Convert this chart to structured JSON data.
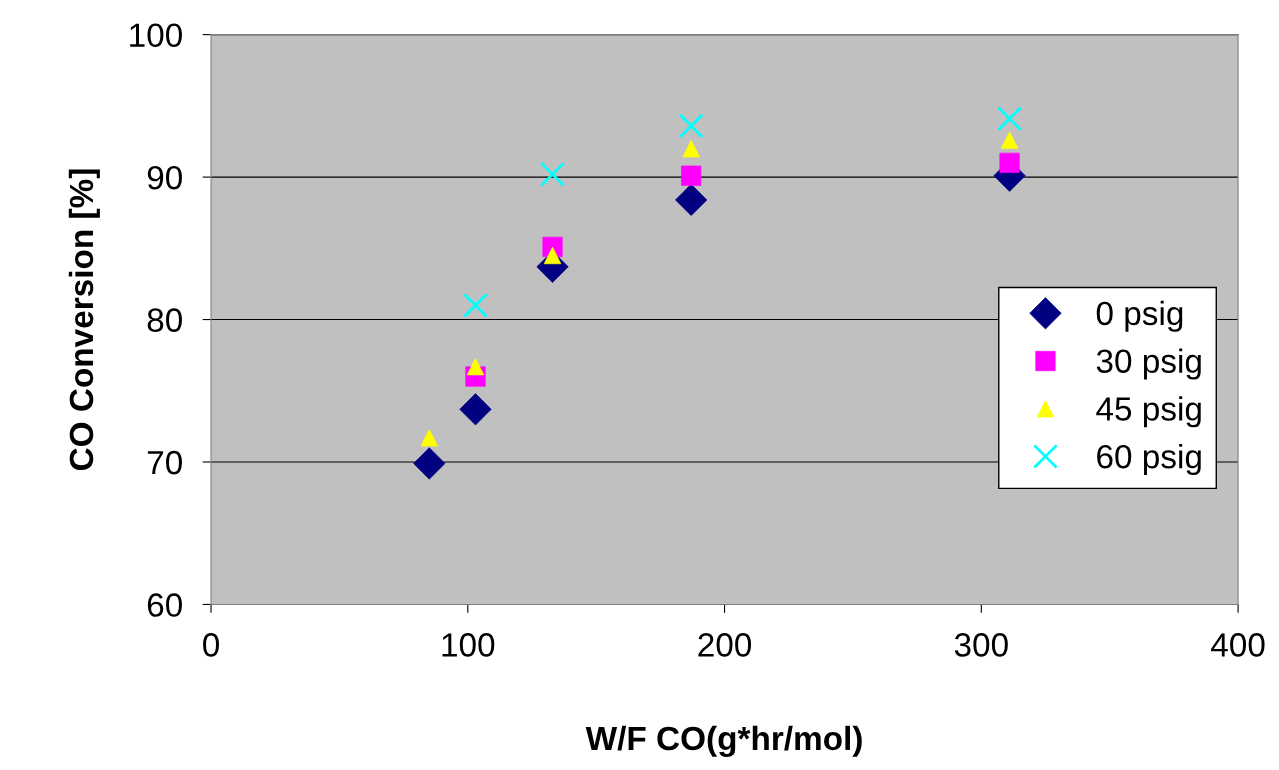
{
  "chart_data": {
    "type": "scatter",
    "xlabel": "W/F CO(g*hr/mol)",
    "ylabel": "CO Conversion [%]",
    "x": [
      85,
      103,
      133,
      187,
      311
    ],
    "series": [
      {
        "name": "0 psig",
        "color": "#000080",
        "marker": "diamond",
        "values": [
          69.9,
          73.7,
          83.7,
          88.4,
          90.1
        ]
      },
      {
        "name": "30 psig",
        "color": "#ff00ff",
        "marker": "square",
        "values": [
          null,
          76.0,
          85.1,
          90.1,
          91.0
        ]
      },
      {
        "name": "45 psig",
        "color": "#ffff00",
        "marker": "triangle",
        "values": [
          71.7,
          76.7,
          84.5,
          92.0,
          92.6
        ]
      },
      {
        "name": "60 psig",
        "color": "#00ffff",
        "marker": "cross",
        "values": [
          null,
          81.0,
          90.2,
          93.6,
          94.1
        ]
      }
    ],
    "xlim": [
      0,
      400
    ],
    "xticks": [
      0,
      100,
      200,
      300,
      400
    ],
    "ylim": [
      60,
      100
    ],
    "yticks": [
      60,
      70,
      80,
      90,
      100
    ],
    "grid": "y",
    "legend": "right"
  }
}
